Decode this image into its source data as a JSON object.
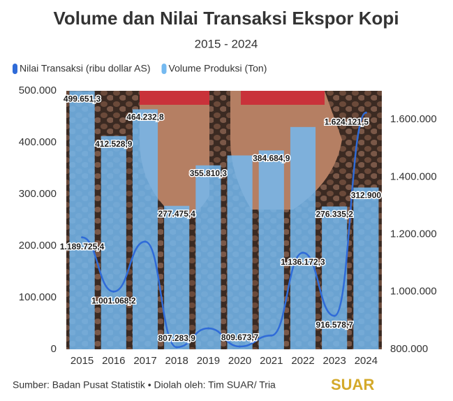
{
  "chart_data": {
    "type": "bar-line",
    "title": "Volume dan Nilai Transaksi Ekspor Kopi",
    "subtitle": "2015 - 2024",
    "categories": [
      "2015",
      "2016",
      "2017",
      "2018",
      "2019",
      "2020",
      "2021",
      "2022",
      "2023",
      "2024"
    ],
    "series": [
      {
        "name": "Nilai Transaksi (ribu dollar AS)",
        "color": "#2f6bd8",
        "type": "line",
        "axis": "y2",
        "values": [
          1189725.4,
          1001068.2,
          1175000,
          807283.9,
          873000,
          809673.7,
          848000,
          1136172.3,
          916578.7,
          1624121.5
        ],
        "value_labels": [
          "1.189.725,4",
          "1.001.068,2",
          null,
          "807.283,9",
          null,
          "809.673,7",
          null,
          "1.136.172,3",
          "916.578,7",
          "1.624.121,5"
        ]
      },
      {
        "name": "Volume Produksi (Ton)",
        "color": "#74b9f0",
        "type": "bar",
        "values": [
          499651.3,
          412528.9,
          464232.8,
          277475.4,
          355810.3,
          375000,
          384684.9,
          430000,
          276335.2,
          312900
        ],
        "value_labels": [
          "499.651,3",
          "412.528,9",
          "464.232,8",
          "277.475,4",
          "355.810,3",
          null,
          "384.684,9",
          null,
          "276.335,2",
          "312.900"
        ]
      }
    ],
    "ylim": [
      0,
      500000
    ],
    "yticks": [
      0,
      {
        "value": 100000,
        "label": "100.000"
      },
      {
        "value": 200000,
        "label": "200.000"
      },
      {
        "value": 300000,
        "label": "300.000"
      },
      {
        "value": 400000,
        "label": "400.000"
      },
      {
        "value": 500000,
        "label": "500.000"
      }
    ],
    "y2lim": [
      800000,
      1700000
    ],
    "y2ticks": [
      {
        "value": 800000,
        "label": "800.000"
      },
      {
        "value": 1000000,
        "label": "1.000.000"
      },
      {
        "value": 1200000,
        "label": "1.200.000"
      },
      {
        "value": 1400000,
        "label": "1.400.000"
      },
      {
        "value": 1600000,
        "label": "1.600.000"
      }
    ],
    "legend": "top-left",
    "source": "Sumber: Badan Pusat Statistik • Diolah oleh: Tim SUAR/ Tria",
    "logo": "SUAR"
  }
}
